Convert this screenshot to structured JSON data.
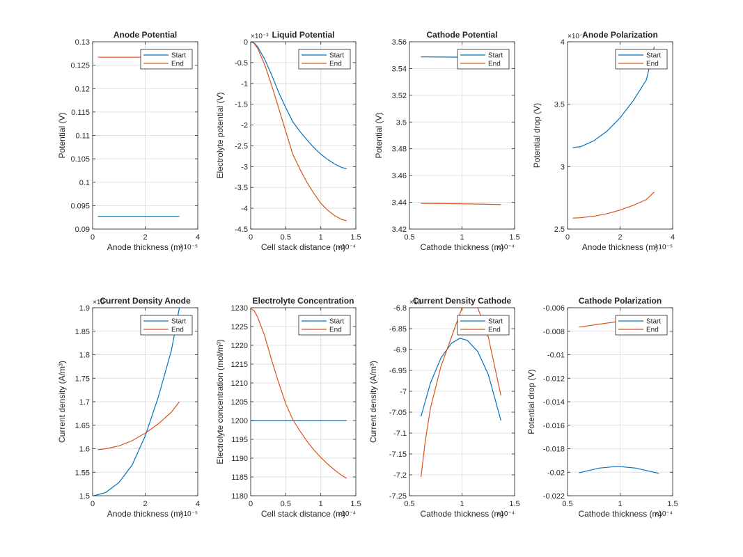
{
  "figure": {
    "legend_entries": [
      "Start",
      "End"
    ],
    "colors": {
      "Start": "#0072BD",
      "End": "#D95319",
      "grid": "#e0e0e0",
      "axis": "#262626"
    },
    "legend_placement": "top-right",
    "grid": true
  },
  "chart_data": [
    {
      "type": "line",
      "title": "Anode Potential",
      "xlabel": "Anode thickness (m)",
      "ylabel": "Potential (V)",
      "x_exponent": "×10⁻⁵",
      "y_exponent": "",
      "xlim": [
        0,
        4e-05
      ],
      "ylim": [
        0.09,
        0.13
      ],
      "xticks": [
        0,
        2e-05,
        4e-05
      ],
      "xtick_labels": [
        "0",
        "2",
        "4"
      ],
      "yticks": [
        0.09,
        0.095,
        0.1,
        0.105,
        0.11,
        0.115,
        0.12,
        0.125,
        0.13
      ],
      "ytick_labels": [
        "0.09",
        "0.095",
        "0.1",
        "0.105",
        "0.11",
        "0.115",
        "0.12",
        "0.125",
        "0.13"
      ],
      "series": [
        {
          "name": "Start",
          "x": [
            2e-06,
            3.3e-05
          ],
          "y": [
            0.0927,
            0.0927
          ]
        },
        {
          "name": "End",
          "x": [
            2e-06,
            3.3e-05
          ],
          "y": [
            0.1267,
            0.1267
          ]
        }
      ]
    },
    {
      "type": "line",
      "title": "Liquid Potential",
      "xlabel": "Cell stack distance (m)",
      "ylabel": "Electrolyte potential (V)",
      "x_exponent": "×10⁻⁴",
      "y_exponent": "×10⁻³",
      "xlim": [
        0,
        0.00015
      ],
      "ylim": [
        -0.0045,
        0
      ],
      "xticks": [
        0,
        5e-05,
        0.0001,
        0.00015
      ],
      "xtick_labels": [
        "0",
        "0.5",
        "1",
        "1.5"
      ],
      "yticks": [
        -0.0045,
        -0.004,
        -0.0035,
        -0.003,
        -0.0025,
        -0.002,
        -0.0015,
        -0.001,
        -0.0005,
        0
      ],
      "ytick_labels": [
        "-4.5",
        "-4",
        "-3.5",
        "-3",
        "-2.5",
        "-2",
        "-1.5",
        "-1",
        "-0.5",
        "0"
      ],
      "series": [
        {
          "name": "Start",
          "x": [
            0,
            5e-06,
            1e-05,
            2e-05,
            3e-05,
            4e-05,
            5e-05,
            6e-05,
            7e-05,
            8e-05,
            9e-05,
            0.0001,
            0.00011,
            0.00012,
            0.00013,
            0.000137
          ],
          "y": [
            0,
            -3e-05,
            -0.00012,
            -0.00042,
            -0.0008,
            -0.00122,
            -0.00158,
            -0.00192,
            -0.00215,
            -0.00235,
            -0.00254,
            -0.0027,
            -0.00283,
            -0.00294,
            -0.00302,
            -0.00305
          ]
        },
        {
          "name": "End",
          "x": [
            0,
            5e-06,
            1e-05,
            2e-05,
            3e-05,
            4e-05,
            5e-05,
            6e-05,
            7e-05,
            8e-05,
            9e-05,
            0.0001,
            0.00011,
            0.00012,
            0.00013,
            0.000137
          ],
          "y": [
            0,
            -4e-05,
            -0.00016,
            -0.00055,
            -0.00105,
            -0.0016,
            -0.00215,
            -0.0027,
            -0.00305,
            -0.00337,
            -0.00364,
            -0.00388,
            -0.00405,
            -0.00418,
            -0.00427,
            -0.0043
          ]
        }
      ]
    },
    {
      "type": "line",
      "title": "Cathode Potential",
      "xlabel": "Cathode thickness (m)",
      "ylabel": "Potential (V)",
      "x_exponent": "×10⁻⁴",
      "y_exponent": "",
      "xlim": [
        5e-05,
        0.00015
      ],
      "ylim": [
        3.42,
        3.56
      ],
      "xticks": [
        5e-05,
        0.0001,
        0.00015
      ],
      "xtick_labels": [
        "0.5",
        "1",
        "1.5"
      ],
      "yticks": [
        3.42,
        3.44,
        3.46,
        3.48,
        3.5,
        3.52,
        3.54,
        3.56
      ],
      "ytick_labels": [
        "3.42",
        "3.44",
        "3.46",
        "3.48",
        "3.5",
        "3.52",
        "3.54",
        "3.56"
      ],
      "series": [
        {
          "name": "Start",
          "x": [
            6.1e-05,
            8e-05,
            0.0001,
            0.00012,
            0.000137
          ],
          "y": [
            3.5487,
            3.5486,
            3.5485,
            3.5484,
            3.5483
          ]
        },
        {
          "name": "End",
          "x": [
            6.1e-05,
            8e-05,
            0.0001,
            0.00012,
            0.000137
          ],
          "y": [
            3.4392,
            3.4391,
            3.4389,
            3.4386,
            3.4383
          ]
        }
      ]
    },
    {
      "type": "line",
      "title": "Anode Polarization",
      "xlabel": "Anode thickness (m)",
      "ylabel": "Potential drop (V)",
      "x_exponent": "×10⁻⁵",
      "y_exponent": "×10⁻³",
      "xlim": [
        0,
        4e-05
      ],
      "ylim": [
        0.0025,
        0.004
      ],
      "xticks": [
        0,
        2e-05,
        4e-05
      ],
      "xtick_labels": [
        "0",
        "2",
        "4"
      ],
      "yticks": [
        0.0025,
        0.003,
        0.0035,
        0.004
      ],
      "ytick_labels": [
        "2.5",
        "3",
        "3.5",
        "4"
      ],
      "series": [
        {
          "name": "Start",
          "x": [
            2e-06,
            5e-06,
            1e-05,
            1.5e-05,
            2e-05,
            2.5e-05,
            3e-05,
            3.3e-05
          ],
          "y": [
            0.003152,
            0.00316,
            0.003207,
            0.003284,
            0.003391,
            0.003528,
            0.003695,
            0.00396
          ]
        },
        {
          "name": "End",
          "x": [
            2e-06,
            5e-06,
            1e-05,
            1.5e-05,
            2e-05,
            2.5e-05,
            3e-05,
            3.3e-05
          ],
          "y": [
            0.002588,
            0.002591,
            0.002603,
            0.002623,
            0.002652,
            0.00269,
            0.002736,
            0.002797
          ]
        }
      ]
    },
    {
      "type": "line",
      "title": "Current Density Anode",
      "xlabel": "Anode thickness (m)",
      "ylabel": "Current density (A/m³)",
      "x_exponent": "×10⁻⁵",
      "y_exponent": "×10⁷",
      "xlim": [
        0,
        4e-05
      ],
      "ylim": [
        15000000.0,
        19000000.0
      ],
      "xticks": [
        0,
        2e-05,
        4e-05
      ],
      "xtick_labels": [
        "0",
        "2",
        "4"
      ],
      "yticks": [
        15000000.0,
        15500000.0,
        16000000.0,
        16500000.0,
        17000000.0,
        17500000.0,
        18000000.0,
        18500000.0,
        19000000.0
      ],
      "ytick_labels": [
        "1.5",
        "1.55",
        "1.6",
        "1.65",
        "1.7",
        "1.75",
        "1.8",
        "1.85",
        "1.9"
      ],
      "series": [
        {
          "name": "Start",
          "x": [
            5e-07,
            5e-06,
            1e-05,
            1.5e-05,
            2e-05,
            2.5e-05,
            3e-05,
            3.3e-05
          ],
          "y": [
            15000000.0,
            15070000.0,
            15280000.0,
            15650000.0,
            16270000.0,
            17100000.0,
            18100000.0,
            19000000.0
          ]
        },
        {
          "name": "End",
          "x": [
            2e-06,
            5e-06,
            1e-05,
            1.5e-05,
            2e-05,
            2.5e-05,
            3e-05,
            3.3e-05
          ],
          "y": [
            15980000.0,
            16000000.0,
            16060000.0,
            16170000.0,
            16330000.0,
            16530000.0,
            16780000.0,
            17000000.0
          ]
        }
      ]
    },
    {
      "type": "line",
      "title": "Electrolyte Concentration",
      "xlabel": "Cell stack distance (m)",
      "ylabel": "Electrolyte concentration (mol/m³)",
      "x_exponent": "×10⁻⁴",
      "y_exponent": "",
      "xlim": [
        0,
        0.00015
      ],
      "ylim": [
        1180,
        1230
      ],
      "xticks": [
        0,
        5e-05,
        0.0001,
        0.00015
      ],
      "xtick_labels": [
        "0",
        "0.5",
        "1",
        "1.5"
      ],
      "yticks": [
        1180,
        1185,
        1190,
        1195,
        1200,
        1205,
        1210,
        1215,
        1220,
        1225,
        1230
      ],
      "ytick_labels": [
        "1180",
        "1185",
        "1190",
        "1195",
        "1200",
        "1205",
        "1210",
        "1215",
        "1220",
        "1225",
        "1230"
      ],
      "series": [
        {
          "name": "Start",
          "x": [
            0,
            0.000137
          ],
          "y": [
            1200,
            1200
          ]
        },
        {
          "name": "End",
          "x": [
            0,
            5e-06,
            1e-05,
            2e-05,
            3e-05,
            4e-05,
            5e-05,
            6e-05,
            7e-05,
            8e-05,
            9e-05,
            0.0001,
            0.00011,
            0.00012,
            0.00013,
            0.000137
          ],
          "y": [
            1229.8,
            1229.2,
            1227.5,
            1222.5,
            1216,
            1210,
            1204.5,
            1200.3,
            1197.3,
            1194.6,
            1192.2,
            1190.2,
            1188.4,
            1186.8,
            1185.4,
            1184.6
          ]
        }
      ]
    },
    {
      "type": "line",
      "title": "Current Density Cathode",
      "xlabel": "Cathode thickness (m)",
      "ylabel": "Current density (A/m³)",
      "x_exponent": "×10⁻⁴",
      "y_exponent": "×10⁷",
      "xlim": [
        5e-05,
        0.00015
      ],
      "ylim": [
        -72500000.0,
        -68000000.0
      ],
      "xticks": [
        5e-05,
        0.0001,
        0.00015
      ],
      "xtick_labels": [
        "0.5",
        "1",
        "1.5"
      ],
      "yticks": [
        -72500000.0,
        -72000000.0,
        -71500000.0,
        -71000000.0,
        -70500000.0,
        -70000000.0,
        -69500000.0,
        -69000000.0,
        -68500000.0,
        -68000000.0
      ],
      "ytick_labels": [
        "-7.25",
        "-7.2",
        "-7.15",
        "-7.1",
        "-7.05",
        "-7",
        "-6.95",
        "-6.9",
        "-6.85",
        "-6.8"
      ],
      "series": [
        {
          "name": "Start",
          "x": [
            6.1e-05,
            7e-05,
            8e-05,
            9e-05,
            9.8e-05,
            0.000105,
            0.000115,
            0.000125,
            0.000137
          ],
          "y": [
            -70600000.0,
            -69800000.0,
            -69200000.0,
            -68850000.0,
            -68730000.0,
            -68780000.0,
            -69050000.0,
            -69600000.0,
            -70700000.0
          ]
        },
        {
          "name": "End",
          "x": [
            6.1e-05,
            6.5e-05,
            7e-05,
            8e-05,
            9e-05,
            0.0001,
            0.000107,
            0.000115,
            0.000125,
            0.000137
          ],
          "y": [
            -72050000.0,
            -71200000.0,
            -70400000.0,
            -69400000.0,
            -68700000.0,
            -68000000.0,
            -67800000.0,
            -68000000.0,
            -68700000.0,
            -70100000.0
          ]
        }
      ]
    },
    {
      "type": "line",
      "title": "Cathode Polarization",
      "xlabel": "Cathode thickness (m)",
      "ylabel": "Potential drop (V)",
      "x_exponent": "×10⁻⁴",
      "y_exponent": "",
      "xlim": [
        5e-05,
        0.00015
      ],
      "ylim": [
        -0.022,
        -0.006
      ],
      "xticks": [
        5e-05,
        0.0001,
        0.00015
      ],
      "xtick_labels": [
        "0.5",
        "1",
        "1.5"
      ],
      "yticks": [
        -0.022,
        -0.02,
        -0.018,
        -0.016,
        -0.014,
        -0.012,
        -0.01,
        -0.008,
        -0.006
      ],
      "ytick_labels": [
        "-0.022",
        "-0.02",
        "-0.018",
        "-0.016",
        "-0.014",
        "-0.012",
        "-0.01",
        "-0.008",
        "-0.006"
      ],
      "series": [
        {
          "name": "Start",
          "x": [
            6.1e-05,
            8e-05,
            9.8e-05,
            0.000115,
            0.000137
          ],
          "y": [
            -0.02005,
            -0.01965,
            -0.0195,
            -0.01965,
            -0.0201
          ]
        },
        {
          "name": "End",
          "x": [
            6.1e-05,
            8e-05,
            0.0001,
            0.00012,
            0.000137
          ],
          "y": [
            -0.00765,
            -0.0074,
            -0.00715,
            -0.00705,
            -0.007
          ]
        }
      ]
    }
  ]
}
